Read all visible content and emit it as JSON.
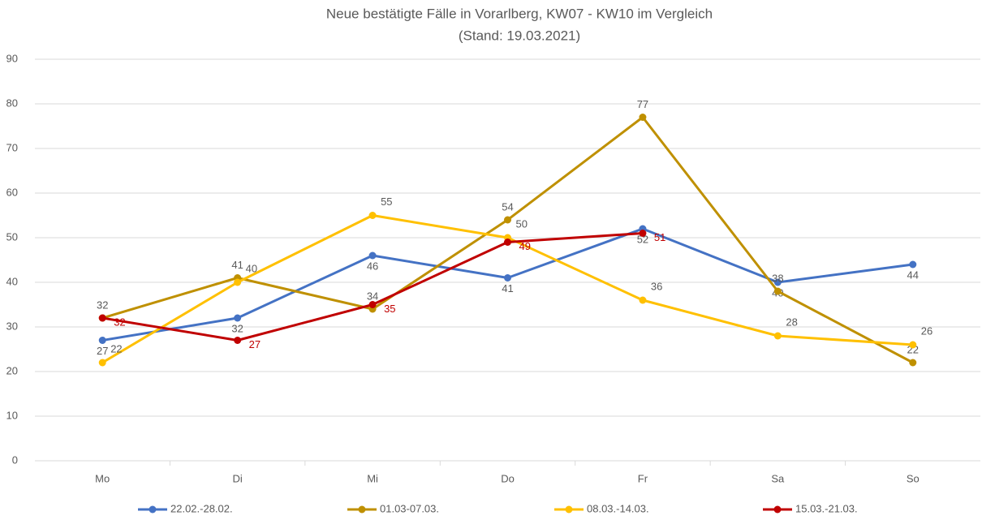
{
  "chart_data": {
    "type": "line",
    "title": "Neue bestätigte Fälle in Vorarlberg, KW07 - KW10 im Vergleich",
    "subtitle": "(Stand: 19.03.2021)",
    "categories": [
      "Mo",
      "Di",
      "Mi",
      "Do",
      "Fr",
      "Sa",
      "So"
    ],
    "series": [
      {
        "name": "22.02.-28.02.",
        "color": "#4472c4",
        "values": [
          27,
          32,
          46,
          41,
          52,
          40,
          44
        ]
      },
      {
        "name": "01.03-07.03.",
        "color": "#bf9000",
        "values": [
          32,
          41,
          34,
          54,
          77,
          38,
          22
        ]
      },
      {
        "name": "08.03.-14.03.",
        "color": "#ffc000",
        "values": [
          22,
          40,
          55,
          50,
          36,
          28,
          26
        ]
      },
      {
        "name": "15.03.-21.03.",
        "color": "#c00000",
        "values": [
          32,
          27,
          35,
          49,
          51,
          null,
          null
        ]
      }
    ],
    "ylim": [
      0,
      90
    ],
    "yticks": [
      0,
      10,
      20,
      30,
      40,
      50,
      60,
      70,
      80,
      90
    ],
    "grid": true,
    "legend": "bottom"
  }
}
